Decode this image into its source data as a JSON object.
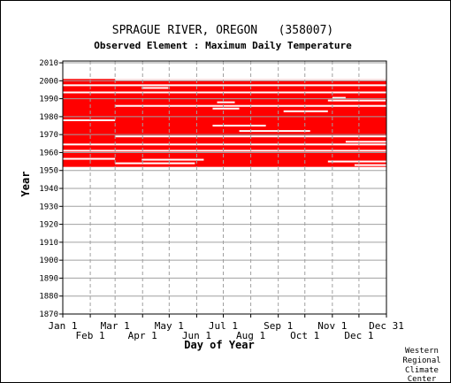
{
  "colors": {
    "data": "#ff0000",
    "grid": "#a0a0a0",
    "axis": "#000000",
    "background": "#ffffff"
  },
  "chart_data": {
    "type": "heatmap",
    "title": "SPRAGUE RIVER, OREGON   (358007)",
    "subtitle": "Observed Element : Maximum Daily Temperature",
    "xlabel": "Day of Year",
    "ylabel": "Year",
    "xlim": [
      1,
      366
    ],
    "ylim": [
      1870,
      2011
    ],
    "grid": true,
    "y_ticks": [
      1870,
      1880,
      1890,
      1900,
      1910,
      1920,
      1930,
      1940,
      1950,
      1960,
      1970,
      1980,
      1990,
      2000,
      2010
    ],
    "x_ticks_upper": [
      {
        "label": "Jan 1",
        "day": 1
      },
      {
        "label": "Mar 1",
        "day": 60
      },
      {
        "label": "May 1",
        "day": 121
      },
      {
        "label": "Jul 1",
        "day": 182
      },
      {
        "label": "Sep 1",
        "day": 244
      },
      {
        "label": "Nov 1",
        "day": 305
      },
      {
        "label": "Dec 31",
        "day": 366
      }
    ],
    "x_ticks_lower": [
      {
        "label": "Feb 1",
        "day": 32
      },
      {
        "label": "Apr 1",
        "day": 91
      },
      {
        "label": "Jun 1",
        "day": 152
      },
      {
        "label": "Aug 1",
        "day": 213
      },
      {
        "label": "Oct 1",
        "day": 274
      },
      {
        "label": "Dec 1",
        "day": 335
      }
    ],
    "coverage_years": [
      1952,
      2000
    ],
    "missing_segments": [
      {
        "year": 2000.5,
        "start": 60,
        "end": 366
      },
      {
        "year": 1997.5,
        "start": 1,
        "end": 366
      },
      {
        "year": 1996,
        "start": 90,
        "end": 120
      },
      {
        "year": 1993.5,
        "start": 1,
        "end": 366
      },
      {
        "year": 1990.5,
        "start": 305,
        "end": 320
      },
      {
        "year": 1989,
        "start": 300,
        "end": 365
      },
      {
        "year": 1988,
        "start": 175,
        "end": 195
      },
      {
        "year": 1986,
        "start": 60,
        "end": 366
      },
      {
        "year": 1984.5,
        "start": 170,
        "end": 200
      },
      {
        "year": 1983,
        "start": 250,
        "end": 300
      },
      {
        "year": 1978,
        "start": 1,
        "end": 60
      },
      {
        "year": 1975,
        "start": 170,
        "end": 230
      },
      {
        "year": 1972,
        "start": 200,
        "end": 280
      },
      {
        "year": 1969,
        "start": 60,
        "end": 366
      },
      {
        "year": 1966,
        "start": 320,
        "end": 366
      },
      {
        "year": 1964.5,
        "start": 1,
        "end": 366
      },
      {
        "year": 1961,
        "start": 1,
        "end": 366
      },
      {
        "year": 1956.5,
        "start": 1,
        "end": 60
      },
      {
        "year": 1956,
        "start": 90,
        "end": 160
      },
      {
        "year": 1955,
        "start": 300,
        "end": 366
      },
      {
        "year": 1954,
        "start": 60,
        "end": 150
      },
      {
        "year": 1953,
        "start": 330,
        "end": 366
      }
    ]
  },
  "credit": [
    "Western",
    "Regional",
    "Climate",
    "Center"
  ]
}
